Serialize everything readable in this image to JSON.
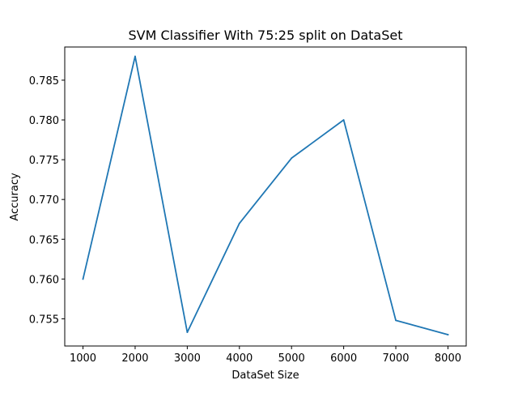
{
  "chart_data": {
    "type": "line",
    "title": "SVM Classifier With 75:25 split on DataSet",
    "xlabel": "DataSet Size",
    "ylabel": "Accuracy",
    "x": [
      1000,
      2000,
      3000,
      4000,
      5000,
      6000,
      7000,
      8000
    ],
    "series": [
      {
        "values": [
          0.76,
          0.788,
          0.7533,
          0.767,
          0.7752,
          0.78,
          0.7548,
          0.753
        ],
        "color": "#1f77b4"
      }
    ],
    "xlim": [
      650,
      8350
    ],
    "ylim": [
      0.75158,
      0.78917
    ],
    "xticks": [
      1000,
      2000,
      3000,
      4000,
      5000,
      6000,
      7000,
      8000
    ],
    "xtick_labels": [
      "1000",
      "2000",
      "3000",
      "4000",
      "5000",
      "6000",
      "7000",
      "8000"
    ],
    "yticks": [
      0.755,
      0.76,
      0.765,
      0.77,
      0.775,
      0.78,
      0.785
    ],
    "ytick_labels": [
      "0.755",
      "0.760",
      "0.765",
      "0.770",
      "0.775",
      "0.780",
      "0.785"
    ],
    "grid": false,
    "legend": false
  }
}
